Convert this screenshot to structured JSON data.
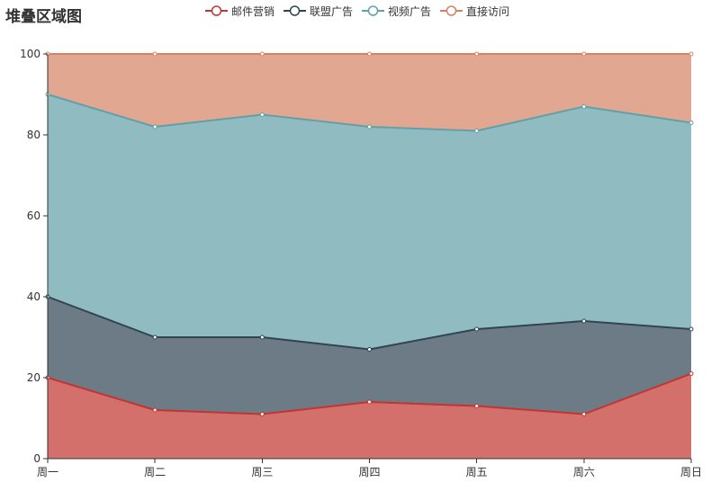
{
  "chart_data": {
    "type": "area",
    "stacked": true,
    "title": "堆叠区域图",
    "categories": [
      "周一",
      "周二",
      "周三",
      "周四",
      "周五",
      "周六",
      "周日"
    ],
    "series": [
      {
        "name": "邮件营销",
        "values": [
          20,
          12,
          11,
          14,
          13,
          11,
          21
        ],
        "color": "#c23531",
        "fill": "#d3706c"
      },
      {
        "name": "联盟广告",
        "values": [
          20,
          18,
          19,
          13,
          19,
          23,
          11
        ],
        "color": "#2f4554",
        "fill": "#6d7b86"
      },
      {
        "name": "视频广告",
        "values": [
          50,
          52,
          55,
          55,
          49,
          53,
          51
        ],
        "color": "#61a0a8",
        "fill": "#90bbc1"
      },
      {
        "name": "直接访问",
        "values": [
          10,
          18,
          15,
          18,
          19,
          13,
          17
        ],
        "color": "#d48265",
        "fill": "#e2a791"
      }
    ],
    "ylim": [
      0,
      100
    ],
    "yticks": [
      0,
      20,
      40,
      60,
      80,
      100
    ],
    "grid": true,
    "legend_position": "top-center",
    "xlabel": "",
    "ylabel": ""
  }
}
